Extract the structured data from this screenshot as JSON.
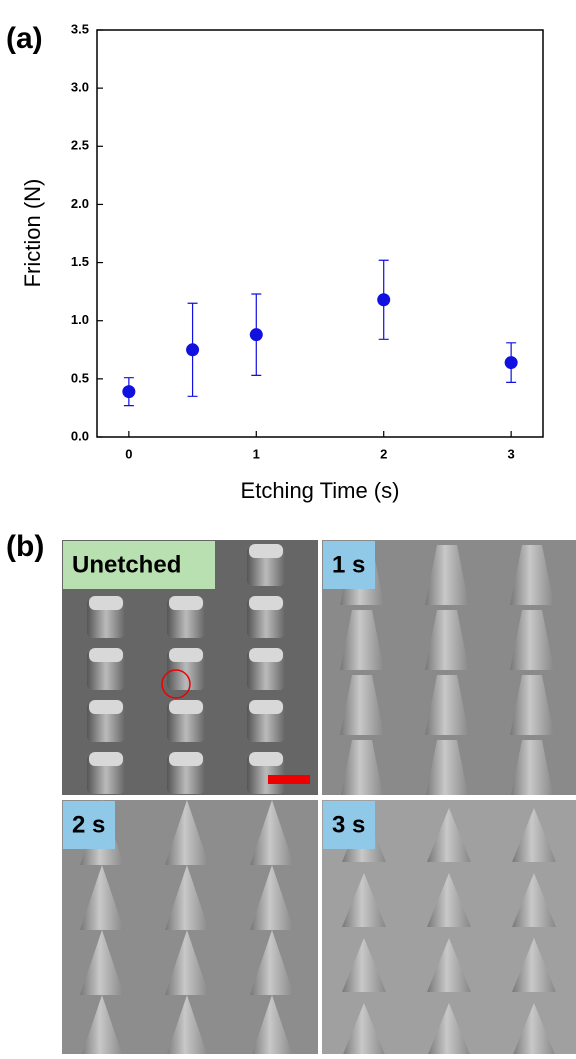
{
  "panel_labels": [
    "(a)",
    "(b)"
  ],
  "chart_data": {
    "type": "scatter",
    "x_label": "Etching Time (s)",
    "y_label": "Friction (N)",
    "x": [
      0,
      0.5,
      1,
      2,
      3
    ],
    "values": [
      0.39,
      0.75,
      0.88,
      1.18,
      0.64
    ],
    "errors": [
      0.12,
      0.4,
      0.35,
      0.34,
      0.17
    ],
    "color": "#1010e0",
    "xlim": [
      -0.25,
      3.25
    ],
    "ylim": [
      0,
      3.5
    ],
    "xticks": [
      0,
      1,
      2,
      3
    ],
    "yticks": [
      {
        "value": 0,
        "label": "0.0"
      },
      0.5,
      {
        "value": 1,
        "label": "1.0"
      },
      1.5,
      {
        "value": 2,
        "label": "2.0"
      },
      2.5,
      {
        "value": 3,
        "label": "3.0"
      },
      3.5
    ]
  },
  "images": [
    {
      "label": "Unetched"
    },
    {
      "label": "1 s"
    },
    {
      "label": "2 s"
    },
    {
      "label": "3 s"
    }
  ]
}
